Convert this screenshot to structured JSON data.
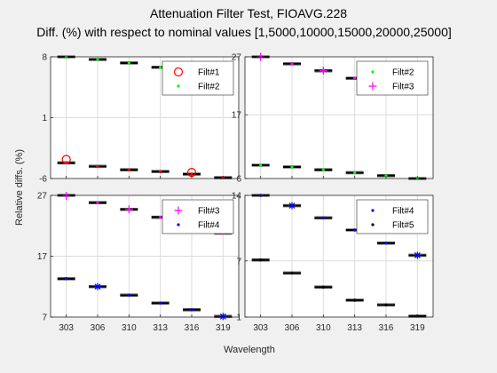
{
  "title": "Attenuation Filter Test, FIOAVG.228",
  "subtitle": "Diff. (%) with respect to nominal values [1,5000,10000,15000,20000,25000]",
  "xlabel": "Wavelength",
  "ylabel": "Relative diffs. (%)",
  "colors": {
    "background": "#f0f0f0",
    "axes_bg": "#ffffff",
    "grid": "#dcdcdc",
    "box": "#000000"
  },
  "chart_data": [
    {
      "type": "box",
      "panel": "top-left",
      "categories": [
        "303",
        "306",
        "310",
        "313",
        "316",
        "319"
      ],
      "ylim": [
        -6,
        8
      ],
      "yticks": [
        -6,
        1,
        8
      ],
      "grid": true,
      "legend_position": "top-right",
      "series": [
        {
          "name": "Filt#1",
          "marker": "circle",
          "color": "#ff0000",
          "values": [
            -4.2,
            -4.6,
            -5.0,
            -5.2,
            -5.5,
            -5.9
          ],
          "outliers": [
            -3.8,
            null,
            null,
            null,
            -5.3,
            null
          ]
        },
        {
          "name": "Filt#2",
          "marker": "dot",
          "color": "#00ff00",
          "values": [
            8.0,
            7.7,
            7.3,
            6.8,
            6.2,
            5.5
          ],
          "outliers": []
        }
      ]
    },
    {
      "type": "box",
      "panel": "top-right",
      "categories": [
        "303",
        "306",
        "310",
        "313",
        "316",
        "319"
      ],
      "ylim": [
        6,
        27
      ],
      "yticks": [
        6,
        17,
        27
      ],
      "grid": true,
      "legend_position": "top-right",
      "series": [
        {
          "name": "Filt#2",
          "marker": "dot",
          "color": "#00ff00",
          "values": [
            8.3,
            8.0,
            7.5,
            7.0,
            6.5,
            6.0
          ],
          "outliers": []
        },
        {
          "name": "Filt#3",
          "marker": "plus",
          "color": "#ff00ff",
          "values": [
            27.0,
            25.8,
            24.6,
            23.3,
            22.0,
            20.7
          ],
          "outliers": [
            27.0,
            null,
            24.6,
            null,
            null,
            null
          ]
        }
      ]
    },
    {
      "type": "box",
      "panel": "bottom-left",
      "categories": [
        "303",
        "306",
        "310",
        "313",
        "316",
        "319"
      ],
      "ylim": [
        7,
        27
      ],
      "yticks": [
        7,
        17,
        27
      ],
      "grid": true,
      "legend_position": "top-right",
      "series": [
        {
          "name": "Filt#3",
          "marker": "plus",
          "color": "#ff00ff",
          "values": [
            27.0,
            25.8,
            24.7,
            23.4,
            22.2,
            20.8
          ],
          "outliers": [
            26.9,
            null,
            24.7,
            null,
            null,
            null
          ]
        },
        {
          "name": "Filt#4",
          "marker": "dot",
          "color": "#0000ff",
          "values": [
            13.3,
            12.0,
            10.6,
            9.3,
            8.2,
            7.1
          ],
          "outliers": [
            null,
            12.0,
            null,
            null,
            null,
            7.1
          ]
        }
      ]
    },
    {
      "type": "box",
      "panel": "bottom-right",
      "categories": [
        "303",
        "306",
        "310",
        "313",
        "316",
        "319"
      ],
      "ylim": [
        1,
        14
      ],
      "yticks": [
        1,
        7,
        14
      ],
      "grid": true,
      "legend_position": "top-right",
      "series": [
        {
          "name": "Filt#4",
          "marker": "dot",
          "color": "#0000ff",
          "values": [
            14.0,
            12.9,
            11.6,
            10.3,
            8.9,
            7.6
          ],
          "outliers": [
            null,
            12.9,
            null,
            null,
            null,
            7.6
          ]
        },
        {
          "name": "Filt#5",
          "marker": "dot",
          "color": "#000000",
          "values": [
            7.1,
            5.7,
            4.2,
            2.8,
            2.3,
            1.1
          ],
          "outliers": []
        }
      ]
    }
  ]
}
